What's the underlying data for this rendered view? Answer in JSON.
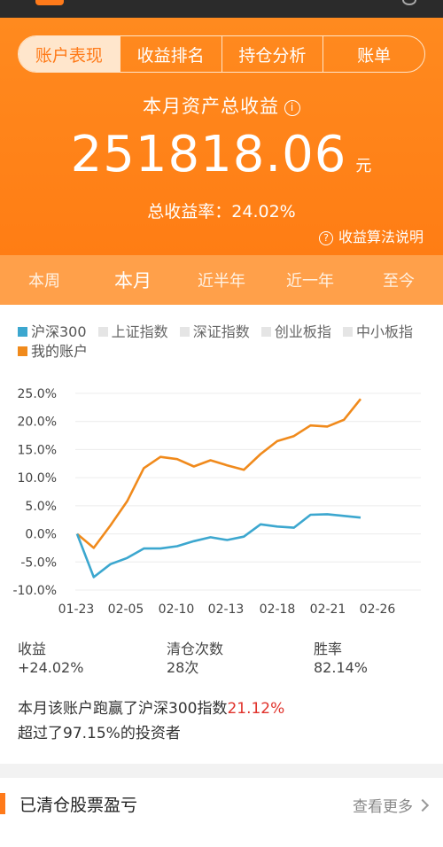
{
  "tabs": [
    "账户表现",
    "收益排名",
    "持仓分析",
    "账单"
  ],
  "hero": {
    "title": "本月资产总收益",
    "amount": "251818.06",
    "unit": "元",
    "rate_label": "总收益率：24.02%",
    "explain": "收益算法说明"
  },
  "periods": [
    "本周",
    "本月",
    "近半年",
    "近一年",
    "至今"
  ],
  "active_period": 1,
  "legend": [
    {
      "label": "沪深300",
      "color": "#3ca7cf"
    },
    {
      "label": "上证指数",
      "color": "#e5e5e5"
    },
    {
      "label": "深证指数",
      "color": "#e5e5e5"
    },
    {
      "label": "创业板指",
      "color": "#e5e5e5"
    },
    {
      "label": "中小板指",
      "color": "#e5e5e5"
    },
    {
      "label": "我的账户",
      "color": "#f08a1c"
    }
  ],
  "chart_data": {
    "type": "line",
    "x_ticks": [
      "01-23",
      "02-05",
      "02-10",
      "02-13",
      "02-18",
      "02-21",
      "02-26"
    ],
    "y_ticks": [
      "25.0%",
      "20.0%",
      "15.0%",
      "10.0%",
      "5.0%",
      "0.0%",
      "-5.0%",
      "-10.0%"
    ],
    "ylim": [
      -10,
      25
    ],
    "grid": true,
    "series": [
      {
        "name": "我的账户",
        "color": "#f08a1c",
        "values": [
          0.0,
          -2.5,
          1.5,
          5.8,
          11.7,
          13.7,
          13.3,
          12.0,
          13.1,
          12.2,
          11.4,
          14.2,
          16.5,
          17.4,
          19.3,
          19.1,
          20.3,
          24.0
        ]
      },
      {
        "name": "沪深300",
        "color": "#3ca7cf",
        "values": [
          0.0,
          -7.7,
          -5.4,
          -4.3,
          -2.6,
          -2.6,
          -2.2,
          -1.3,
          -0.6,
          -1.1,
          -0.5,
          1.7,
          1.3,
          1.1,
          3.4,
          3.5,
          3.2,
          2.9
        ]
      }
    ]
  },
  "stats": [
    {
      "label": "收益",
      "value": "+24.02%"
    },
    {
      "label": "清仓次数",
      "value": "28次"
    },
    {
      "label": "胜率",
      "value": "82.14%"
    }
  ],
  "summary": {
    "line1_prefix": "本月该账户跑赢了沪深300指数",
    "line1_highlight": "21.12%",
    "line2": "超过了97.15%的投资者"
  },
  "cleared": {
    "title": "已清仓股票盈亏",
    "more": "查看更多"
  },
  "icons": {
    "info": "info-icon",
    "help": "question-icon",
    "chevron": "chevron-right-icon"
  }
}
